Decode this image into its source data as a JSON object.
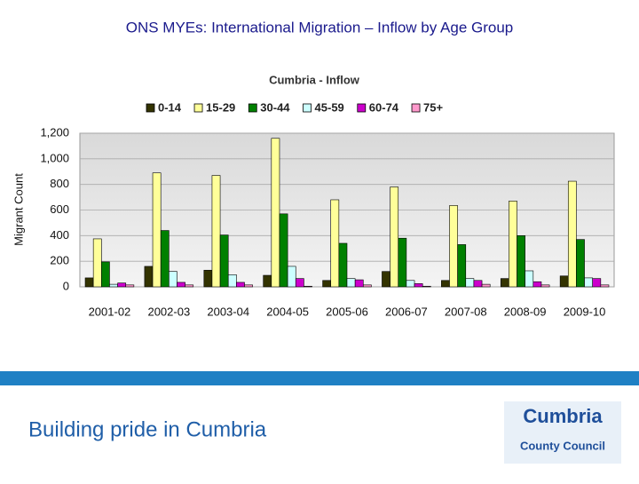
{
  "header": {
    "title": "ONS MYEs: International Migration – Inflow by Age Group"
  },
  "chart_data": {
    "type": "bar",
    "title": "Cumbria - Inflow",
    "y_label": "Migrant Count",
    "categories": [
      "2001-02",
      "2002-03",
      "2003-04",
      "2004-05",
      "2005-06",
      "2006-07",
      "2007-08",
      "2008-09",
      "2009-10"
    ],
    "series": [
      {
        "name": "0-14",
        "color": "#333300",
        "values": [
          70,
          160,
          130,
          90,
          50,
          120,
          50,
          65,
          85
        ]
      },
      {
        "name": "15-29",
        "color": "#ffff99",
        "values": [
          375,
          890,
          870,
          1160,
          680,
          780,
          635,
          670,
          825
        ]
      },
      {
        "name": "30-44",
        "color": "#008000",
        "values": [
          195,
          440,
          405,
          570,
          340,
          380,
          330,
          400,
          370
        ]
      },
      {
        "name": "45-59",
        "color": "#ccffff",
        "values": [
          20,
          120,
          95,
          160,
          65,
          50,
          65,
          125,
          70
        ]
      },
      {
        "name": "60-74",
        "color": "#cc00cc",
        "values": [
          30,
          35,
          35,
          65,
          55,
          25,
          50,
          40,
          65
        ]
      },
      {
        "name": "75+",
        "color": "#ff99cc",
        "values": [
          15,
          15,
          15,
          5,
          15,
          5,
          20,
          15,
          15
        ]
      }
    ],
    "ylim": [
      0,
      1200
    ],
    "yticks": [
      0,
      200,
      400,
      600,
      800,
      {
        "value": 1000,
        "label": "1,000"
      },
      {
        "value": 1200,
        "label": "1,200"
      }
    ],
    "grid": true,
    "legend": "top"
  },
  "footer": {
    "tagline": "Building pride in Cumbria",
    "logo_name": "Cumbria",
    "logo_subtitle": "County Council"
  }
}
